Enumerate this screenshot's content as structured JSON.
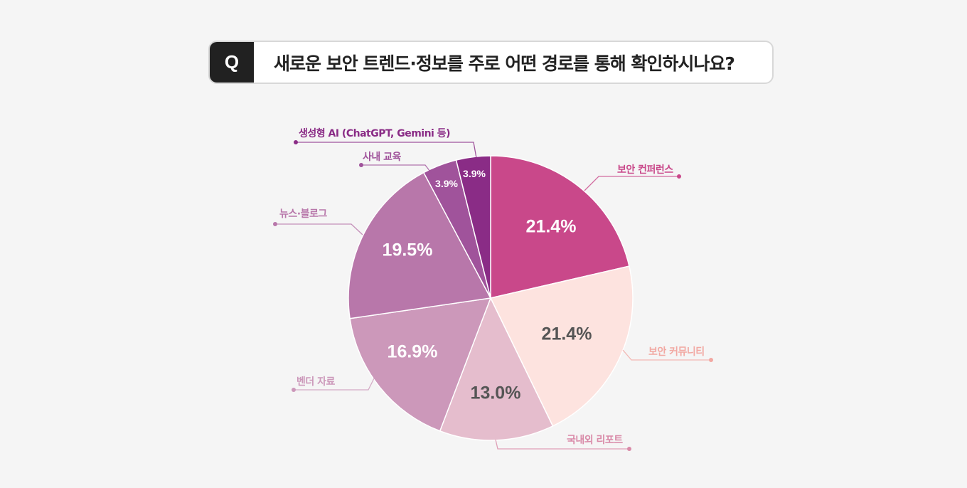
{
  "question": {
    "badge": "Q",
    "text": "새로운 보안 트렌드·정보를 주로 어떤 경로를 통해 확인하시나요?"
  },
  "chart_data": {
    "type": "pie",
    "title": "새로운 보안 트렌드·정보를 주로 어떤 경로를 통해 확인하시나요?",
    "categories": [
      "보안 컨퍼런스",
      "보안 커뮤니티",
      "국내외 리포트",
      "벤더 자료",
      "뉴스·블로그",
      "사내 교육",
      "생성형 AI (ChatGPT, Gemini 등)"
    ],
    "values": [
      21.4,
      21.4,
      13.0,
      16.9,
      19.5,
      3.9,
      3.9
    ],
    "labels": [
      "21.4%",
      "21.4%",
      "13.0%",
      "16.9%",
      "19.5%",
      "3.9%",
      "3.9%"
    ],
    "colors": [
      "#c9488a",
      "#fde3df",
      "#e5bdcd",
      "#cc98ba",
      "#b877aa",
      "#a0539b",
      "#8a2c86"
    ],
    "label_colors": [
      "#c9488a",
      "#f2a8a2",
      "#d98aa8",
      "#cc98ba",
      "#b877aa",
      "#a0539b",
      "#8a2c86"
    ],
    "start_angle": "12 o'clock",
    "direction": "clockwise",
    "legend": "leader-line labels"
  }
}
